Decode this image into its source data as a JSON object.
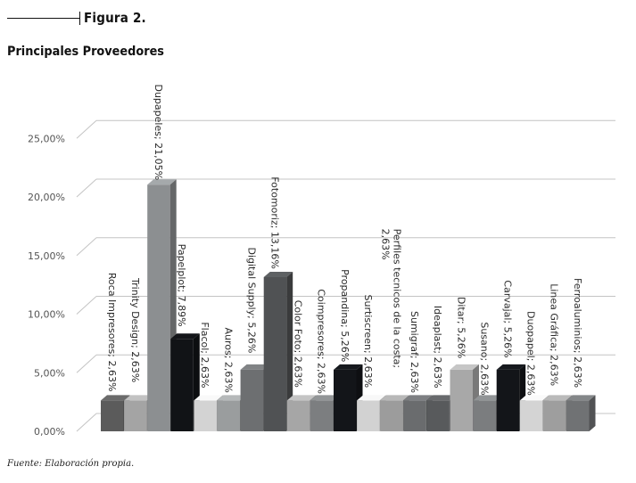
{
  "figure_label": "Figura 2.",
  "chart_data": {
    "type": "bar",
    "title": "Principales Proveedores",
    "categories": [
      "Roca Impresores",
      "Trinity Design",
      "Dupapeles",
      "Papelplot",
      "Flacol",
      "Auros",
      "Digital Supply",
      "Fotomoriz",
      "Color Foto",
      "Coimpresores",
      "Propandina",
      "Surtiscreen",
      "Perfiles tecnicos de la costa",
      "Sumigraf",
      "Ideaplast",
      "Ditar",
      "Susano",
      "Carvajal",
      "Duopapel",
      "Linea Gráfica",
      "Ferroaluminios"
    ],
    "values": [
      2.63,
      2.63,
      21.05,
      7.89,
      2.63,
      2.63,
      5.26,
      13.16,
      2.63,
      2.63,
      5.26,
      2.63,
      2.63,
      2.63,
      2.63,
      5.26,
      2.63,
      5.26,
      2.63,
      2.63,
      2.63
    ],
    "data_labels": [
      "Roca Impresores; 2,63%",
      "Trinity Design; 2,63%",
      "Dupapeles; 21,05%",
      "Papelplot; 7,89%",
      "Flacol; 2,63%",
      "Auros; 2,63%",
      "Digital Supply; 5,26%",
      "Fotomoriz; 13,16%",
      "Color Foto; 2,63%",
      "Coimpresores; 2,63%",
      "Propandina; 5,26%",
      "Surtiscreen; 2,63%",
      [
        "Perfiles tecnicos de la costa;",
        "2,63%"
      ],
      "Sumigraf; 2,63%",
      "Ideaplast; 2,63%",
      "Ditar; 5,26%",
      "Susano; 2,63%",
      "Carvajal; 5,26%",
      "Duopapel; 2,63%",
      "Linea Gráfica; 2,63%",
      "Ferroaluminios; 2,63%"
    ],
    "bar_colors": [
      "#5b5b5b",
      "#a4a4a4",
      "#8c8f91",
      "#111316",
      "#d3d3d3",
      "#9a9d9e",
      "#6d6f71",
      "#505254",
      "#a6a6a6",
      "#7c7e80",
      "#131519",
      "#d2d2d2",
      "#9c9c9c",
      "#6a6c6e",
      "#585a5c",
      "#a8a8a8",
      "#7b7d7f",
      "#131519",
      "#d4d4d4",
      "#9e9e9e",
      "#707274"
    ],
    "yticks": [
      "0,00%",
      "5,00%",
      "10,00%",
      "15,00%",
      "20,00%",
      "25,00%"
    ],
    "ylim": [
      0,
      25
    ],
    "xlabel": "",
    "ylabel": "",
    "grid": true,
    "legend": "none"
  },
  "source_note": "Fuente: Elaboración propia."
}
